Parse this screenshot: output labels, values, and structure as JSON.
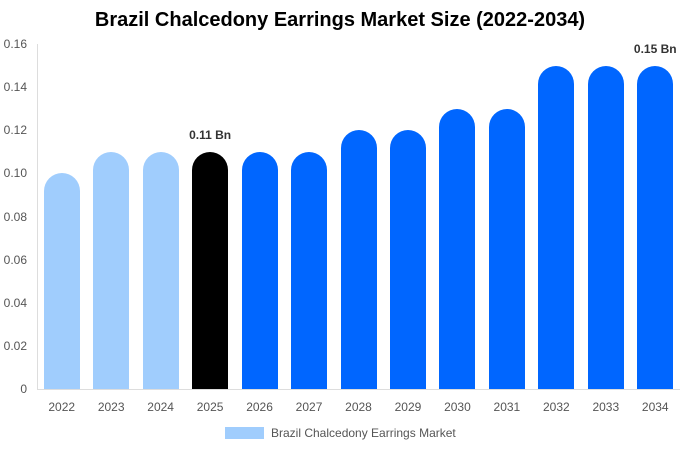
{
  "chart_data": {
    "type": "bar",
    "title": "Brazil Chalcedony Earrings Market Size (2022-2034)",
    "xlabel": "",
    "ylabel": "",
    "ylim": [
      0,
      0.16
    ],
    "yticks": [
      "0",
      "0.02",
      "0.04",
      "0.06",
      "0.08",
      "0.10",
      "0.12",
      "0.14",
      "0.16"
    ],
    "grid": false,
    "legend_position": "bottom",
    "categories": [
      "2022",
      "2023",
      "2024",
      "2025",
      "2026",
      "2027",
      "2028",
      "2029",
      "2030",
      "2031",
      "2032",
      "2033",
      "2034"
    ],
    "series": [
      {
        "name": "Brazil Chalcedony Earrings Market",
        "values": [
          0.1,
          0.11,
          0.11,
          0.11,
          0.11,
          0.11,
          0.12,
          0.12,
          0.13,
          0.13,
          0.15,
          0.15,
          0.15
        ],
        "colors": [
          "#a0cdfd",
          "#a0cdfd",
          "#a0cdfd",
          "#000000",
          "#0066ff",
          "#0066ff",
          "#0066ff",
          "#0066ff",
          "#0066ff",
          "#0066ff",
          "#0066ff",
          "#0066ff",
          "#0066ff"
        ]
      }
    ],
    "annotations": [
      {
        "category": "2025",
        "text": "0.11 Bn"
      },
      {
        "category": "2034",
        "text": "0.15 Bn"
      }
    ]
  },
  "colors": {
    "historical": "#a0cdfd",
    "current": "#000000",
    "forecast": "#0066ff"
  },
  "legend": {
    "label": "Brazil Chalcedony Earrings Market"
  }
}
